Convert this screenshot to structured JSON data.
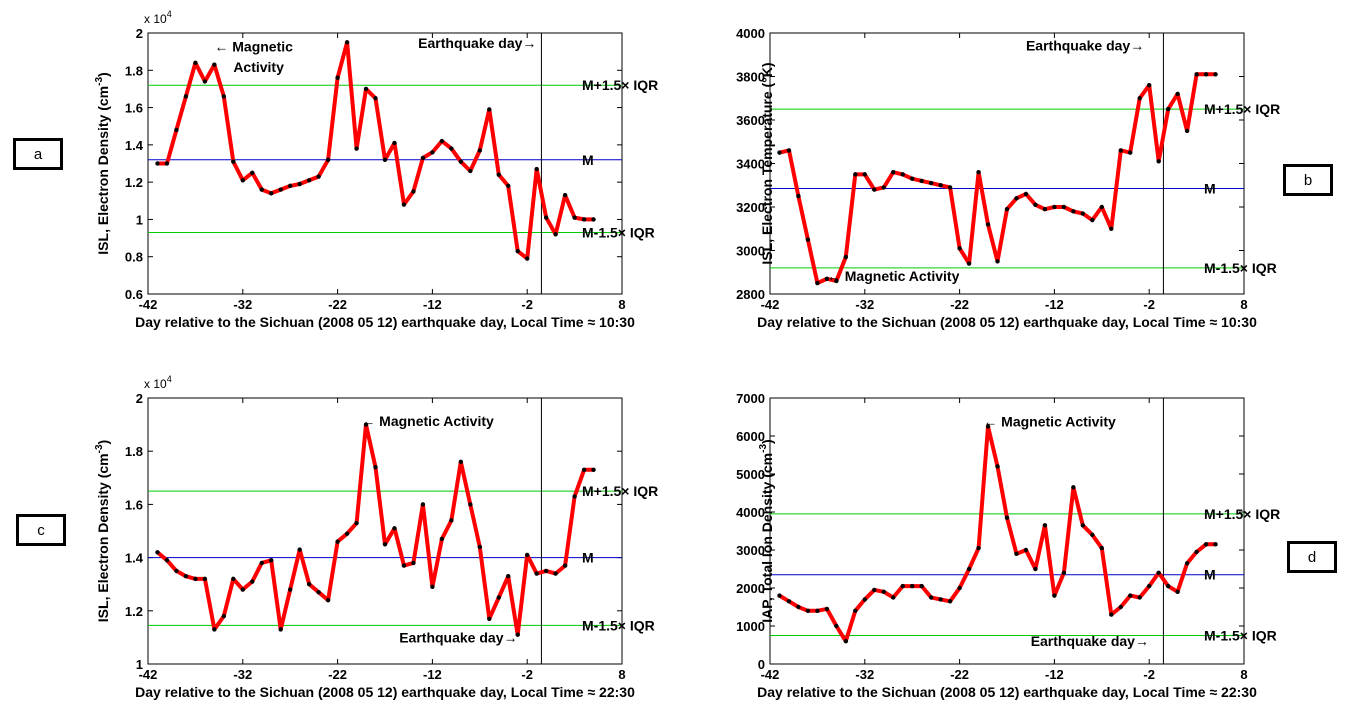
{
  "panels": [
    {
      "label": "a"
    },
    {
      "label": "b"
    },
    {
      "label": "c"
    },
    {
      "label": "d"
    }
  ],
  "chart_data": [
    {
      "type": "line",
      "xlabel": "Day relative to the Sichuan (2008 05 12) earthquake day, Local Time ≈ 10:30",
      "ylabel": "ISL, Electron Density (cm⁻³)",
      "ylabel_main": "ISL, Electron Density (cm",
      "ylabel_sup": "-3",
      "ylabel_end": ")",
      "scale_factor": "x 10",
      "scale_exp": "4",
      "xlim": [
        -42,
        8
      ],
      "ylim": [
        6000,
        20000
      ],
      "xticks": [
        -42,
        -32,
        -22,
        -12,
        -2,
        8
      ],
      "xtick_labels": [
        "-42",
        "-32",
        "-22",
        "-12",
        "-2",
        "8"
      ],
      "yticks": [
        6000,
        8000,
        10000,
        12000,
        14000,
        16000,
        18000,
        20000
      ],
      "ytick_labels": [
        "0.6",
        "0.8",
        "1",
        "1.2",
        "1.4",
        "1.6",
        "1.8",
        "2"
      ],
      "x": [
        -41,
        -40,
        -39,
        -38,
        -37,
        -36,
        -35,
        -34,
        -33,
        -32,
        -31,
        -30,
        -29,
        -28,
        -27,
        -26,
        -25,
        -24,
        -23,
        -22,
        -21,
        -20,
        -19,
        -18,
        -17,
        -16,
        -15,
        -14,
        -13,
        -12,
        -11,
        -10,
        -9,
        -8,
        -7,
        -6,
        -5,
        -4,
        -3,
        -2,
        -1,
        0,
        1,
        2,
        3,
        4,
        5
      ],
      "y": [
        13000,
        13000,
        14800,
        16600,
        18400,
        17400,
        18300,
        16600,
        13100,
        12100,
        12500,
        11600,
        11400,
        11600,
        11800,
        11900,
        12100,
        12300,
        13200,
        17600,
        19500,
        13800,
        17000,
        16500,
        13200,
        14100,
        10800,
        11500,
        13300,
        13600,
        14200,
        13800,
        13100,
        12600,
        13700,
        15900,
        12400,
        11800,
        8300,
        7900,
        12700,
        10100,
        9200,
        11300,
        10100,
        10000,
        10000
      ],
      "hlines": [
        {
          "value": 17200,
          "color": "#00cc00",
          "label": "M+1.5× IQR"
        },
        {
          "value": 13200,
          "color": "#0000cc",
          "label": "M"
        },
        {
          "value": 9300,
          "color": "#00cc00",
          "label": "M-1.5× IQR"
        }
      ],
      "vline": -0.5,
      "annotations": [
        {
          "text": "← Magnetic",
          "x": -35,
          "y": 19000
        },
        {
          "text": "Activity",
          "x": -33,
          "y": 17900
        },
        {
          "text": "Earthquake day→",
          "x": -13.5,
          "y": 19200
        }
      ],
      "series_color": "#ff0000"
    },
    {
      "type": "line",
      "xlabel": "Day relative to the Sichuan (2008 05 12) earthquake day, Local Time ≈ 10:30",
      "ylabel": "ISL, Electron Temperature (°K)",
      "ylabel_main": "ISL, Electron Temperature (°K)",
      "ylabel_sup": "",
      "ylabel_end": "",
      "scale_factor": "",
      "scale_exp": "",
      "xlim": [
        -42,
        8
      ],
      "ylim": [
        2800,
        4000
      ],
      "xticks": [
        -42,
        -32,
        -22,
        -12,
        -2,
        8
      ],
      "xtick_labels": [
        "-42",
        "-32",
        "-22",
        "-12",
        "-2",
        "8"
      ],
      "yticks": [
        2800,
        3000,
        3200,
        3400,
        3600,
        3800,
        4000
      ],
      "ytick_labels": [
        "2800",
        "3000",
        "3200",
        "3400",
        "3600",
        "3800",
        "4000"
      ],
      "x": [
        -41,
        -40,
        -39,
        -38,
        -37,
        -36,
        -35,
        -34,
        -33,
        -32,
        -31,
        -30,
        -29,
        -28,
        -27,
        -26,
        -25,
        -24,
        -23,
        -22,
        -21,
        -20,
        -19,
        -18,
        -17,
        -16,
        -15,
        -14,
        -13,
        -12,
        -11,
        -10,
        -9,
        -8,
        -7,
        -6,
        -5,
        -4,
        -3,
        -2,
        -1,
        0,
        1,
        2,
        3,
        4,
        5
      ],
      "y": [
        3450,
        3460,
        3250,
        3050,
        2850,
        2870,
        2860,
        2970,
        3350,
        3350,
        3280,
        3290,
        3360,
        3350,
        3330,
        3320,
        3310,
        3300,
        3290,
        3010,
        2940,
        3360,
        3120,
        2950,
        3190,
        3240,
        3260,
        3210,
        3190,
        3200,
        3200,
        3180,
        3170,
        3140,
        3200,
        3100,
        3460,
        3450,
        3700,
        3760,
        3410,
        3650,
        3720,
        3550,
        3810,
        3810,
        3810
      ],
      "hlines": [
        {
          "value": 3650,
          "color": "#00cc00",
          "label": "M+1.5× IQR"
        },
        {
          "value": 3285,
          "color": "#0000cc",
          "label": "M"
        },
        {
          "value": 2920,
          "color": "#00cc00",
          "label": "M-1.5× IQR"
        }
      ],
      "vline": -0.5,
      "annotations": [
        {
          "text": "Earthquake day→",
          "x": -15,
          "y": 3920
        },
        {
          "text": "← Magnetic Activity",
          "x": -36,
          "y": 2860
        }
      ],
      "series_color": "#ff0000"
    },
    {
      "type": "line",
      "xlabel": "Day relative to the Sichuan (2008 05 12) earthquake day, Local Time ≈ 22:30",
      "ylabel": "ISL, Electron Density (cm⁻³)",
      "ylabel_main": "ISL, Electron Density (cm",
      "ylabel_sup": "-3",
      "ylabel_end": ")",
      "scale_factor": "x 10",
      "scale_exp": "4",
      "xlim": [
        -42,
        8
      ],
      "ylim": [
        10000,
        20000
      ],
      "xticks": [
        -42,
        -32,
        -22,
        -12,
        -2,
        8
      ],
      "xtick_labels": [
        "-42",
        "-32",
        "-22",
        "-12",
        "-2",
        "8"
      ],
      "yticks": [
        10000,
        12000,
        14000,
        16000,
        18000,
        20000
      ],
      "ytick_labels": [
        "1",
        "1.2",
        "1.4",
        "1.6",
        "1.8",
        "2"
      ],
      "x": [
        -41,
        -40,
        -39,
        -38,
        -37,
        -36,
        -35,
        -34,
        -33,
        -32,
        -31,
        -30,
        -29,
        -28,
        -27,
        -26,
        -25,
        -24,
        -23,
        -22,
        -21,
        -20,
        -19,
        -18,
        -17,
        -16,
        -15,
        -14,
        -13,
        -12,
        -11,
        -10,
        -9,
        -8,
        -7,
        -6,
        -5,
        -4,
        -3,
        -2,
        -1,
        0,
        1,
        2,
        3,
        4,
        5
      ],
      "y": [
        14200,
        13900,
        13500,
        13300,
        13200,
        13200,
        11300,
        11800,
        13200,
        12800,
        13100,
        13800,
        13900,
        11300,
        12800,
        14300,
        13000,
        12700,
        12400,
        14600,
        14900,
        15300,
        19000,
        17400,
        14500,
        15100,
        13700,
        13800,
        16000,
        12900,
        14700,
        15400,
        17600,
        16000,
        14400,
        11700,
        12500,
        13300,
        11100,
        14100,
        13400,
        13500,
        13400,
        13700,
        16300,
        17300,
        17300
      ],
      "hlines": [
        {
          "value": 16500,
          "color": "#00cc00",
          "label": "M+1.5× IQR"
        },
        {
          "value": 14000,
          "color": "#0000cc",
          "label": "M"
        },
        {
          "value": 11450,
          "color": "#00cc00",
          "label": "M-1.5× IQR"
        }
      ],
      "vline": -0.5,
      "annotations": [
        {
          "text": "← Magnetic Activity",
          "x": -19.5,
          "y": 18950
        },
        {
          "text": "Earthquake day→",
          "x": -15.5,
          "y": 10800
        }
      ],
      "series_color": "#ff0000"
    },
    {
      "type": "line",
      "xlabel": "Day relative to the Sichuan (2008 05 12) earthquake day, Local Time ≈ 22:30",
      "ylabel": "IAP, Total Ion Density (cm⁻³)",
      "ylabel_main": "IAP, Total Ion Density (cm",
      "ylabel_sup": "-3",
      "ylabel_end": ")",
      "scale_factor": "",
      "scale_exp": "",
      "xlim": [
        -42,
        8
      ],
      "ylim": [
        0,
        7000
      ],
      "xticks": [
        -42,
        -32,
        -22,
        -12,
        -2,
        8
      ],
      "xtick_labels": [
        "-42",
        "-32",
        "-22",
        "-12",
        "-2",
        "8"
      ],
      "yticks": [
        0,
        1000,
        2000,
        3000,
        4000,
        5000,
        6000,
        7000
      ],
      "ytick_labels": [
        "0",
        "1000",
        "2000",
        "3000",
        "4000",
        "5000",
        "6000",
        "7000"
      ],
      "x": [
        -41,
        -40,
        -39,
        -38,
        -37,
        -36,
        -35,
        -34,
        -33,
        -32,
        -31,
        -30,
        -29,
        -28,
        -27,
        -26,
        -25,
        -24,
        -23,
        -22,
        -21,
        -20,
        -19,
        -18,
        -17,
        -16,
        -15,
        -14,
        -13,
        -12,
        -11,
        -10,
        -9,
        -8,
        -7,
        -6,
        -5,
        -4,
        -3,
        -2,
        -1,
        0,
        1,
        2,
        3,
        4,
        5
      ],
      "y": [
        1800,
        1650,
        1500,
        1400,
        1400,
        1450,
        1000,
        600,
        1400,
        1700,
        1950,
        1900,
        1750,
        2050,
        2050,
        2050,
        1750,
        1700,
        1650,
        2000,
        2500,
        3050,
        6250,
        5200,
        3850,
        2900,
        3000,
        2500,
        3650,
        1800,
        2400,
        4650,
        3650,
        3400,
        3050,
        1300,
        1500,
        1800,
        1750,
        2050,
        2400,
        2050,
        1900,
        2650,
        2950,
        3150,
        3150
      ],
      "hlines": [
        {
          "value": 3950,
          "color": "#00cc00",
          "label": "M+1.5× IQR"
        },
        {
          "value": 2350,
          "color": "#0000cc",
          "label": "M"
        },
        {
          "value": 750,
          "color": "#00cc00",
          "label": "M-1.5× IQR"
        }
      ],
      "vline": -0.5,
      "annotations": [
        {
          "text": "← Magnetic Activity",
          "x": -19.5,
          "y": 6250
        },
        {
          "text": "Earthquake day→",
          "x": -14.5,
          "y": 480
        }
      ],
      "series_color": "#ff0000"
    }
  ]
}
